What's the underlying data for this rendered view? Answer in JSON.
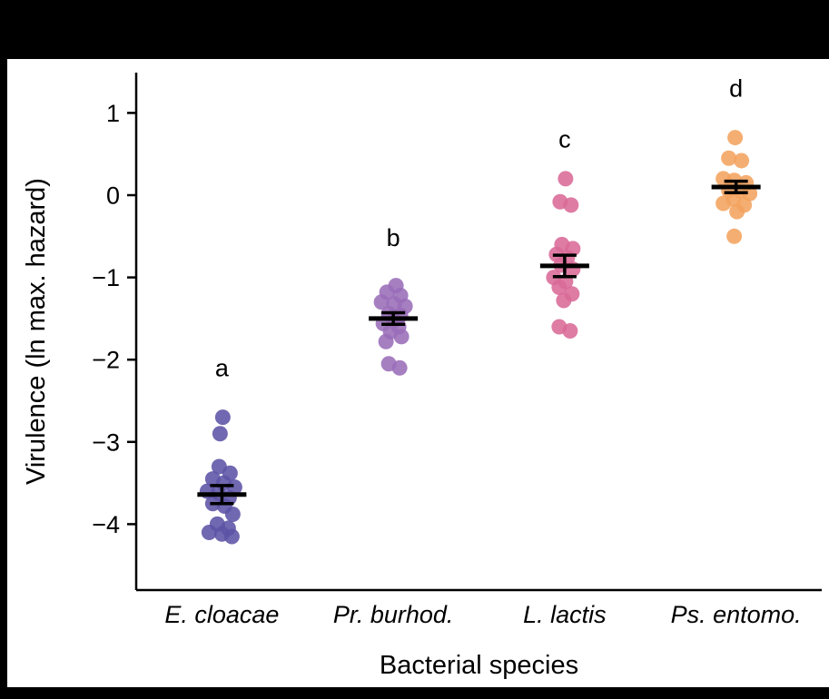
{
  "window": {
    "background_color": "#000000",
    "figure_background_color": "#ffffff"
  },
  "chart_data": {
    "type": "scatter",
    "title": "",
    "xlabel": "Bacterial species",
    "ylabel": "Virulence (ln max. hazard)",
    "ylim": [
      -4.8,
      1.5
    ],
    "grid": false,
    "legend": "none",
    "axis_color": "#000000",
    "y_ticks": [
      {
        "value": 1,
        "label": "1"
      },
      {
        "value": 0,
        "label": "0"
      },
      {
        "value": -1,
        "label": "−1"
      },
      {
        "value": -2,
        "label": "−2"
      },
      {
        "value": -3,
        "label": "−3"
      },
      {
        "value": -4,
        "label": "−4"
      }
    ],
    "error_bar_style": "mean ± SE with caps",
    "groups": [
      {
        "name": "E. cloacae",
        "letter": "a",
        "letter_y": -2.2,
        "color": "#5c53a5",
        "mean": -3.64,
        "se": 0.11,
        "values": [
          -2.7,
          -2.9,
          -3.3,
          -3.38,
          -3.45,
          -3.5,
          -3.55,
          -3.6,
          -3.62,
          -3.68,
          -3.75,
          -3.78,
          -3.88,
          -4.0,
          -4.05,
          -4.1,
          -4.12,
          -4.15
        ],
        "jitter": [
          1,
          -2,
          -3,
          9,
          -10,
          2,
          14,
          -16,
          -4,
          8,
          -10,
          3,
          12,
          -5,
          7,
          -14,
          0,
          11
        ]
      },
      {
        "name": "Pr. burhod.",
        "letter": "b",
        "letter_y": -0.62,
        "color": "#9a6db8",
        "mean": -1.5,
        "se": 0.07,
        "values": [
          -1.1,
          -1.18,
          -1.22,
          -1.3,
          -1.32,
          -1.35,
          -1.44,
          -1.46,
          -1.52,
          -1.56,
          -1.6,
          -1.66,
          -1.72,
          -1.78,
          -2.05,
          -2.1
        ],
        "jitter": [
          3,
          -7,
          8,
          -13,
          1,
          13,
          -5,
          8,
          1,
          -11,
          6,
          -3,
          9,
          -8,
          -5,
          7
        ]
      },
      {
        "name": "L. lactis",
        "letter": "c",
        "letter_y": 0.58,
        "color": "#d96a97",
        "mean": -0.86,
        "se": 0.13,
        "values": [
          0.2,
          -0.08,
          -0.12,
          -0.6,
          -0.65,
          -0.72,
          -0.76,
          -0.85,
          -0.9,
          -1.0,
          -1.05,
          -1.12,
          -1.2,
          -1.28,
          -1.6,
          -1.65
        ],
        "jitter": [
          1,
          -5,
          7,
          -3,
          9,
          -9,
          3,
          -4,
          9,
          -12,
          1,
          -6,
          8,
          -1,
          -6,
          6
        ]
      },
      {
        "name": "Ps. entomo.",
        "letter": "d",
        "letter_y": 1.2,
        "color": "#f4a35e",
        "mean": 0.1,
        "se": 0.07,
        "values": [
          0.7,
          0.45,
          0.42,
          0.2,
          0.18,
          0.15,
          0.06,
          0.05,
          0.02,
          -0.05,
          -0.1,
          -0.12,
          -0.2,
          -0.5
        ],
        "jitter": [
          -1,
          -8,
          6,
          -14,
          -2,
          11,
          -8,
          5,
          15,
          -3,
          -14,
          9,
          1,
          -2
        ]
      }
    ]
  }
}
